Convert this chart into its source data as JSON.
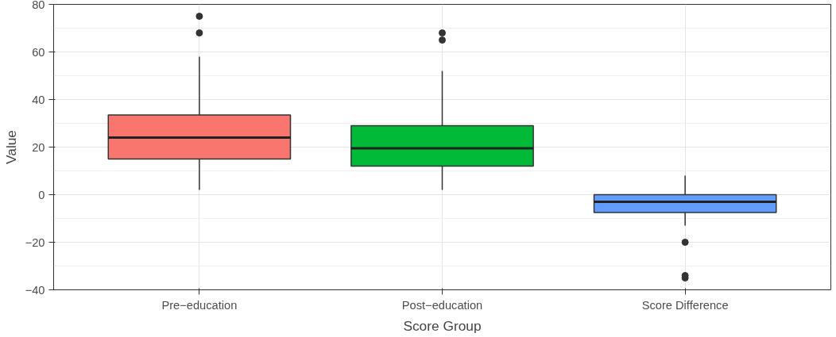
{
  "chart_data": {
    "type": "box",
    "xlabel": "Score Group",
    "ylabel": "Value",
    "categories": [
      "Pre−education",
      "Post−education",
      "Score Difference"
    ],
    "colors": [
      "#f8766d",
      "#00ba38",
      "#619cff"
    ],
    "boxes": [
      {
        "low": 2,
        "q1": 15,
        "median": 24,
        "q3": 33.5,
        "high": 58,
        "outliers": [
          75,
          68
        ]
      },
      {
        "low": 2,
        "q1": 12,
        "median": 19.5,
        "q3": 29,
        "high": 52,
        "outliers": [
          68,
          65
        ]
      },
      {
        "low": -13,
        "q1": -7.5,
        "median": -3,
        "q3": 0,
        "high": 8,
        "outliers": [
          -20,
          -34,
          -35
        ]
      }
    ],
    "ylim": [
      -40,
      80
    ],
    "yticks": [
      -40,
      -20,
      0,
      20,
      40,
      60,
      80
    ],
    "grid": true
  }
}
